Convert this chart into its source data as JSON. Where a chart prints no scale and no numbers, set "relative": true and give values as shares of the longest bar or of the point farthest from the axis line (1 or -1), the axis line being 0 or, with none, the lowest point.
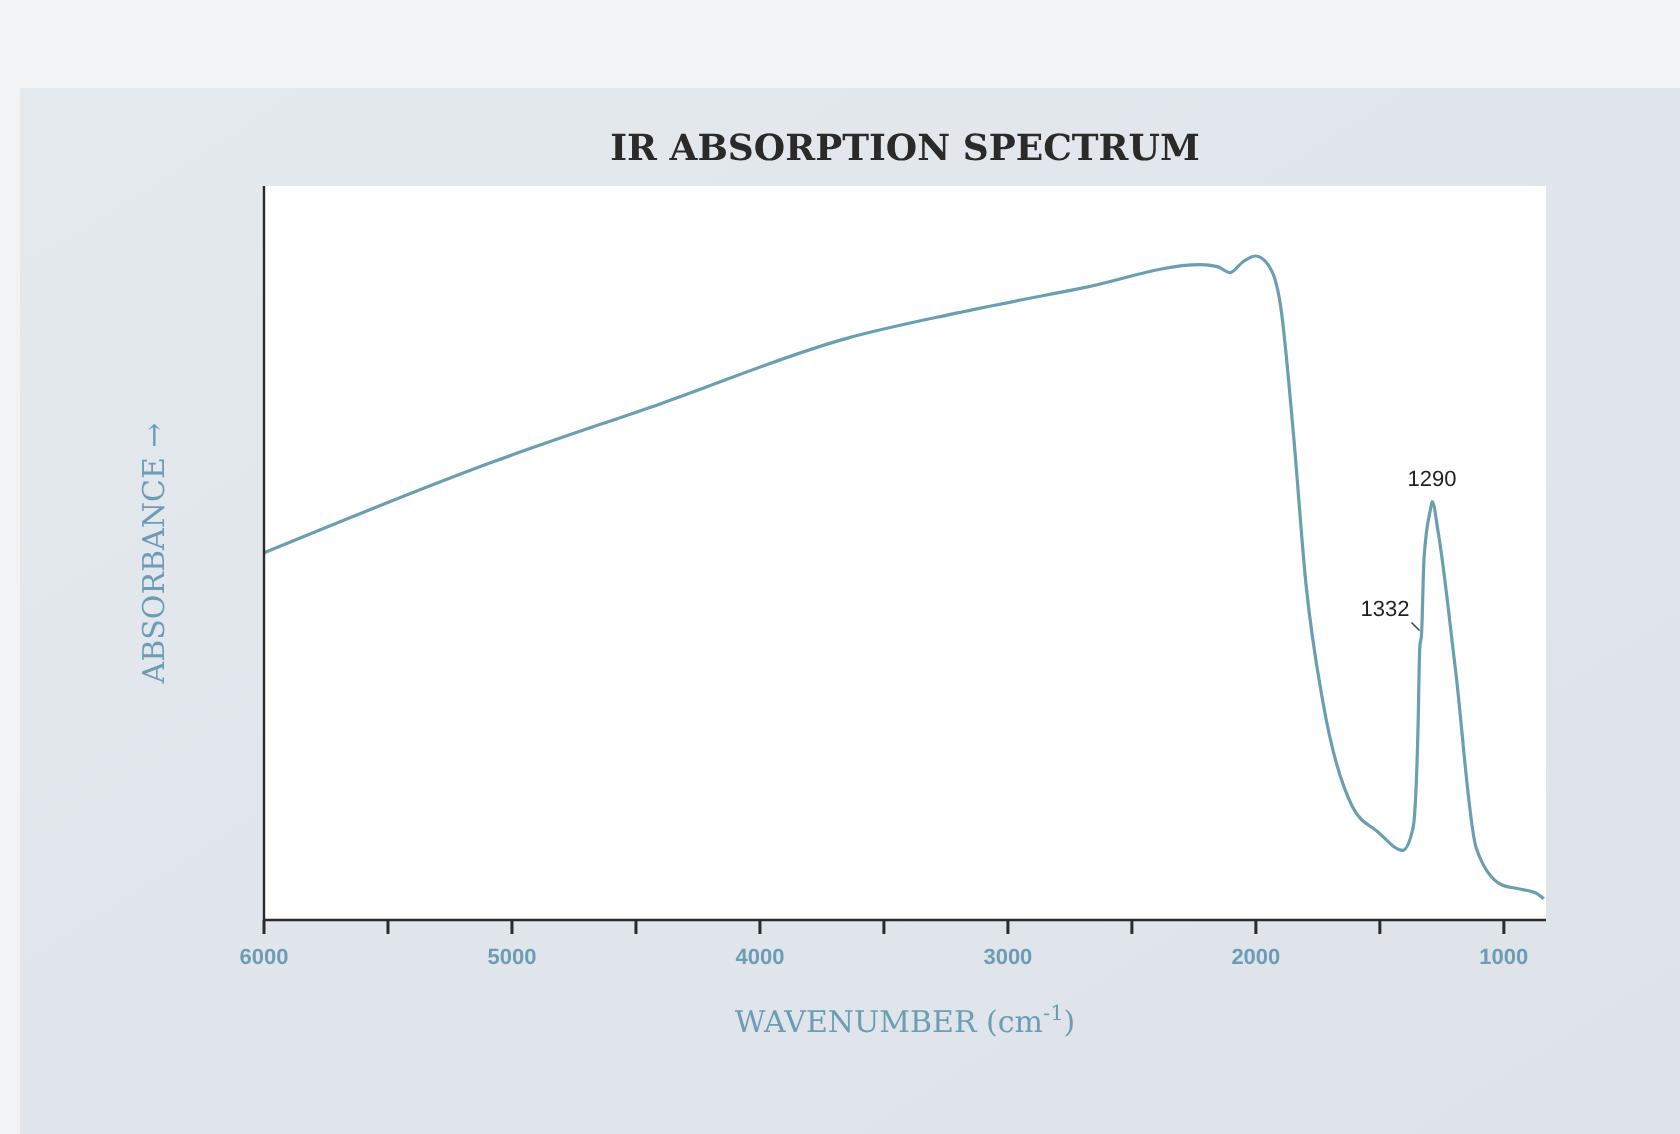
{
  "chart_data": {
    "type": "line",
    "title": "IR ABSORPTION SPECTRUM",
    "xlabel": "WAVENUMBER (cm$^{-1}$)",
    "ylabel": "ABSORBANCE →",
    "relative": true,
    "xlim": [
      6000,
      830
    ],
    "xticks": [
      6000,
      {
        "value": 5500,
        "label": null
      },
      5000,
      {
        "value": 4500,
        "label": null
      },
      4000,
      {
        "value": 3500,
        "label": null
      },
      3000,
      {
        "value": 2500,
        "label": null
      },
      2000,
      {
        "value": 1500,
        "label": null
      },
      1000
    ],
    "x": [
      6000,
      5076,
      4397,
      3650,
      3208,
      2698,
      2223,
      2155,
      2104,
      2053,
      2002,
      1951,
      1900,
      1849,
      1798,
      1730,
      1611,
      1509,
      1407,
      1366,
      1346,
      1339,
      1332,
      1322,
      1295,
      1289,
      1264,
      1196,
      1111,
      1009,
      941,
      873,
      839
    ],
    "series": [
      {
        "color": "#6a9fb0",
        "values": [
          0.553,
          0.69,
          0.778,
          0.876,
          0.914,
          0.952,
          0.987,
          0.984,
          0.975,
          0.991,
          1.0,
          0.987,
          0.924,
          0.734,
          0.506,
          0.329,
          0.171,
          0.133,
          0.105,
          0.139,
          0.291,
          0.411,
          0.43,
          0.544,
          0.62,
          0.63,
          0.582,
          0.38,
          0.108,
          0.053,
          0.047,
          0.041,
          0.032
        ]
      }
    ],
    "annotations": [
      {
        "text": "1290",
        "x": 1290,
        "y": 0.63
      },
      {
        "text": "1332",
        "x": 1332,
        "y": 0.43
      }
    ],
    "marker": "none",
    "line_style": "solid"
  }
}
